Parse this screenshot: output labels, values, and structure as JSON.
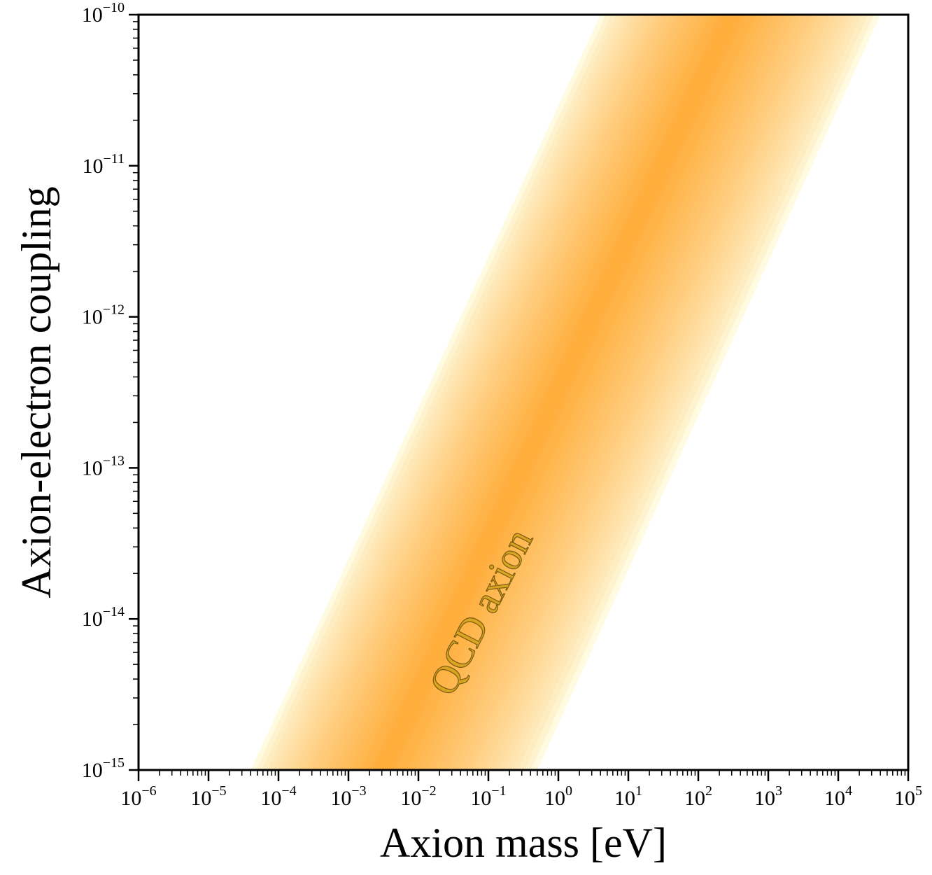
{
  "chart_data": {
    "type": "area",
    "title": "",
    "xlabel": "Axion mass [eV]",
    "ylabel": "Axion-electron coupling",
    "xscale": "log",
    "yscale": "log",
    "xlim": [
      1e-06,
      100000.0
    ],
    "ylim": [
      1e-15,
      1e-10
    ],
    "x_ticks": [
      {
        "base": "10",
        "exp": "−6"
      },
      {
        "base": "10",
        "exp": "−5"
      },
      {
        "base": "10",
        "exp": "−4"
      },
      {
        "base": "10",
        "exp": "−3"
      },
      {
        "base": "10",
        "exp": "−2"
      },
      {
        "base": "10",
        "exp": "−1"
      },
      {
        "base": "10",
        "exp": "0"
      },
      {
        "base": "10",
        "exp": "1"
      },
      {
        "base": "10",
        "exp": "2"
      },
      {
        "base": "10",
        "exp": "3"
      },
      {
        "base": "10",
        "exp": "4"
      },
      {
        "base": "10",
        "exp": "5"
      }
    ],
    "y_ticks": [
      {
        "base": "10",
        "exp": "−15"
      },
      {
        "base": "10",
        "exp": "−14"
      },
      {
        "base": "10",
        "exp": "−13"
      },
      {
        "base": "10",
        "exp": "−12"
      },
      {
        "base": "10",
        "exp": "−11"
      },
      {
        "base": "10",
        "exp": "−10"
      }
    ],
    "band": {
      "description_slope": "g proportional to mass",
      "center_line": [
        [
          0.003,
          1e-15
        ],
        [
          300,
          1e-10
        ]
      ],
      "outer_edges": {
        "lower_mass_edge": [
          [
            4e-05,
            1e-15
          ],
          [
            4,
            1e-10
          ]
        ],
        "upper_mass_edge": [
          [
            0.5,
            1e-15
          ],
          [
            40000,
            1e-10
          ]
        ]
      },
      "color_center": "#ffad3b",
      "color_edge": "#fffbe0"
    },
    "annotations": [
      {
        "text": "QCD axion",
        "x": 0.03,
        "y": 3e-15,
        "rotation_deg": -63,
        "color": "#d9a520"
      }
    ],
    "grid": false,
    "legend": "none"
  }
}
